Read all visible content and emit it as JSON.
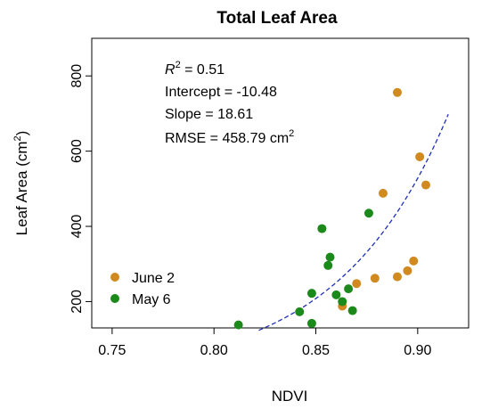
{
  "chart_data": {
    "type": "scatter",
    "title": "Total Leaf Area",
    "xlabel": "NDVI",
    "ylabel_main": "Leaf Area (cm",
    "ylabel_sup": "2",
    "ylabel_close": ")",
    "xlim": [
      0.74,
      0.925
    ],
    "ylim": [
      130,
      900
    ],
    "x_ticks": [
      0.75,
      0.8,
      0.85,
      0.9
    ],
    "x_tick_labels": [
      "0.75",
      "0.80",
      "0.85",
      "0.90"
    ],
    "y_ticks": [
      200,
      400,
      600,
      800
    ],
    "y_tick_labels": [
      "200",
      "400",
      "600",
      "800"
    ],
    "grid": false,
    "legend_position": "bottom-left",
    "stats": {
      "r2_label": "R",
      "r2_sup": "2",
      "r2_value": " = 0.51",
      "intercept": "Intercept = -10.48",
      "slope": "Slope = 18.61",
      "rmse_label": "RMSE = 458.79 cm",
      "rmse_sup": "2"
    },
    "fit_curve": {
      "intercept": -10.48,
      "slope": 18.61,
      "transform": "exp",
      "x_range": [
        0.822,
        0.915
      ],
      "color": "#1f2fb5"
    },
    "series": [
      {
        "name": "June 2",
        "color": "#d08a1f",
        "points": [
          [
            0.863,
            188
          ],
          [
            0.87,
            248
          ],
          [
            0.879,
            262
          ],
          [
            0.883,
            488
          ],
          [
            0.89,
            756
          ],
          [
            0.89,
            266
          ],
          [
            0.895,
            282
          ],
          [
            0.898,
            308
          ],
          [
            0.901,
            585
          ],
          [
            0.904,
            510
          ]
        ]
      },
      {
        "name": "May 6",
        "color": "#1b8a1b",
        "points": [
          [
            0.812,
            138
          ],
          [
            0.842,
            173
          ],
          [
            0.848,
            142
          ],
          [
            0.848,
            222
          ],
          [
            0.853,
            394
          ],
          [
            0.856,
            296
          ],
          [
            0.857,
            318
          ],
          [
            0.86,
            218
          ],
          [
            0.863,
            200
          ],
          [
            0.866,
            234
          ],
          [
            0.868,
            176
          ],
          [
            0.876,
            435
          ]
        ]
      }
    ]
  }
}
